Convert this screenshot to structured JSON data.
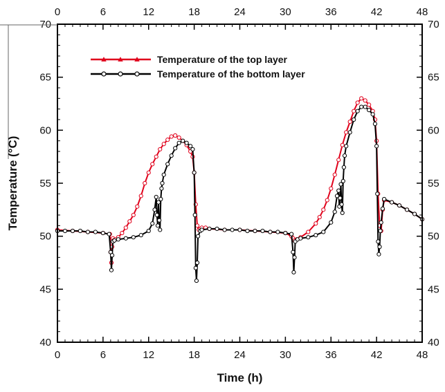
{
  "chart_data": {
    "type": "line",
    "xlabel": "Time (h)",
    "ylabel": "Temperature (°C)",
    "xlim": [
      0,
      48
    ],
    "ylim": [
      40,
      70
    ],
    "x_ticks": [
      "0",
      "6",
      "12",
      "18",
      "24",
      "30",
      "36",
      "42",
      "48"
    ],
    "y_ticks": [
      "40",
      "45",
      "50",
      "55",
      "60",
      "65",
      "70"
    ],
    "y_ticks_right": [
      "40",
      "45",
      "50",
      "55",
      "60",
      "65",
      "70"
    ],
    "legend_position": "top-left",
    "grid": false,
    "series": [
      {
        "name": "Temperature of the top layer",
        "color": "#e0001b",
        "marker": "triangle",
        "x": [
          0,
          2,
          4,
          6,
          6.9,
          7.0,
          7.1,
          7.2,
          7.3,
          7.4,
          7.6,
          8.0,
          8.5,
          9.0,
          9.5,
          10.0,
          10.5,
          11.0,
          11.5,
          12.0,
          12.5,
          13.0,
          13.5,
          14.0,
          14.5,
          15.0,
          15.5,
          16.0,
          16.5,
          17.0,
          17.5,
          17.8,
          18.0,
          18.2,
          18.4,
          18.6,
          18.8,
          19.0,
          19.5,
          20,
          22,
          24,
          26,
          28,
          30,
          30.8,
          31.0,
          31.2,
          31.5,
          32.0,
          33.0,
          34.0,
          34.5,
          35.0,
          35.5,
          36.0,
          36.5,
          37.0,
          37.5,
          38.0,
          38.5,
          39.0,
          39.5,
          40.0,
          40.5,
          41.0,
          41.5,
          41.8,
          42.0,
          42.2,
          42.4,
          42.6,
          42.8,
          43.0,
          44,
          45,
          46,
          47,
          48
        ],
        "y": [
          50.6,
          50.5,
          50.4,
          50.3,
          50.2,
          48.5,
          47.5,
          49.0,
          49.8,
          49.6,
          49.7,
          49.9,
          50.3,
          50.8,
          51.4,
          52.0,
          52.8,
          53.8,
          55.0,
          56.0,
          56.8,
          57.5,
          58.2,
          58.7,
          59.1,
          59.4,
          59.5,
          59.3,
          59.0,
          58.6,
          58.0,
          57.5,
          56.0,
          53.0,
          51.0,
          50.6,
          50.7,
          50.8,
          50.8,
          50.7,
          50.6,
          50.6,
          50.5,
          50.4,
          50.3,
          50.0,
          49.8,
          49.6,
          49.7,
          49.9,
          50.4,
          51.2,
          51.8,
          52.5,
          53.4,
          54.5,
          55.8,
          57.2,
          58.6,
          59.8,
          60.8,
          61.8,
          62.6,
          63.0,
          62.8,
          62.4,
          61.8,
          61.0,
          59.0,
          54.0,
          51.0,
          50.5,
          52.5,
          53.4,
          53.2,
          52.9,
          52.5,
          52.1,
          51.6
        ]
      },
      {
        "name": "Temperature of the bottom layer",
        "color": "#000000",
        "marker": "circle",
        "x": [
          0,
          1,
          2,
          3,
          4,
          5,
          6,
          6.8,
          7.0,
          7.1,
          7.2,
          7.3,
          7.5,
          8.0,
          9.0,
          10.0,
          11.0,
          12.0,
          12.5,
          12.8,
          13.0,
          13.1,
          13.2,
          13.3,
          13.4,
          13.5,
          13.6,
          13.7,
          13.8,
          14.0,
          14.5,
          15.0,
          15.5,
          16.0,
          16.5,
          17.0,
          17.5,
          17.8,
          18.0,
          18.1,
          18.2,
          18.3,
          18.4,
          18.5,
          18.8,
          19.0,
          20,
          21,
          22,
          23,
          24,
          25,
          26,
          27,
          28,
          29,
          30,
          30.8,
          31.0,
          31.1,
          31.2,
          31.3,
          31.6,
          32.0,
          33.0,
          34.0,
          35.0,
          36.0,
          36.5,
          36.8,
          37.0,
          37.1,
          37.2,
          37.3,
          37.4,
          37.5,
          37.6,
          37.7,
          37.8,
          38.0,
          38.5,
          39.0,
          39.5,
          40.0,
          40.5,
          41.0,
          41.5,
          41.8,
          42.0,
          42.1,
          42.2,
          42.3,
          42.4,
          42.5,
          42.6,
          42.8,
          43.0,
          44,
          45,
          46,
          47,
          48
        ],
        "y": [
          50.5,
          50.5,
          50.5,
          50.5,
          50.4,
          50.4,
          50.3,
          50.2,
          48.5,
          46.8,
          48.2,
          49.5,
          49.6,
          49.7,
          49.8,
          49.9,
          50.1,
          50.5,
          51.2,
          52.5,
          53.7,
          52.0,
          51.0,
          53.2,
          51.5,
          50.6,
          53.5,
          54.5,
          55.0,
          55.8,
          56.8,
          57.6,
          58.3,
          58.8,
          59.0,
          58.8,
          58.5,
          58.2,
          56.0,
          52.0,
          47.0,
          45.8,
          47.5,
          50.0,
          50.5,
          50.6,
          50.7,
          50.7,
          50.6,
          50.6,
          50.6,
          50.5,
          50.5,
          50.5,
          50.4,
          50.4,
          50.3,
          50.2,
          48.5,
          46.6,
          48.0,
          49.5,
          49.7,
          49.8,
          49.9,
          50.1,
          50.4,
          51.3,
          52.3,
          53.8,
          54.3,
          52.8,
          53.6,
          54.9,
          53.0,
          52.2,
          55.2,
          56.5,
          57.6,
          58.5,
          59.8,
          61.0,
          61.8,
          62.2,
          62.2,
          61.9,
          61.5,
          60.6,
          58.5,
          54.0,
          49.5,
          48.3,
          49.0,
          50.5,
          51.3,
          52.6,
          53.5,
          53.2,
          52.9,
          52.5,
          52.1,
          51.6
        ]
      }
    ]
  }
}
